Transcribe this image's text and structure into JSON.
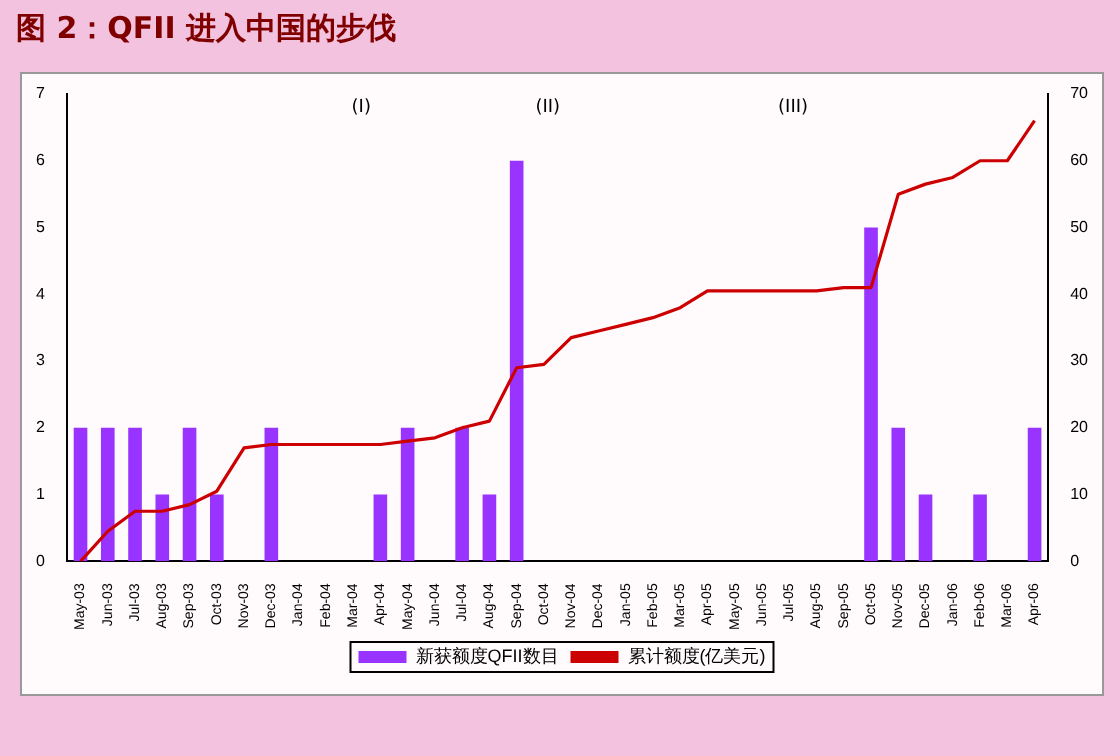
{
  "chart_data": {
    "type": "bar",
    "title": "图 2：QFII 进入中国的步伐",
    "categories": [
      "May-03",
      "Jun-03",
      "Jul-03",
      "Aug-03",
      "Sep-03",
      "Oct-03",
      "Nov-03",
      "Dec-03",
      "Jan-04",
      "Feb-04",
      "Mar-04",
      "Apr-04",
      "May-04",
      "Jun-04",
      "Jul-04",
      "Aug-04",
      "Sep-04",
      "Oct-04",
      "Nov-04",
      "Dec-04",
      "Jan-05",
      "Feb-05",
      "Mar-05",
      "Apr-05",
      "May-05",
      "Jun-05",
      "Jul-05",
      "Aug-05",
      "Sep-05",
      "Oct-05",
      "Nov-05",
      "Dec-05",
      "Jan-06",
      "Feb-06",
      "Mar-06",
      "Apr-06"
    ],
    "series": [
      {
        "name": "新获额度QFII数目",
        "color": "#9933ff",
        "values": [
          2,
          2,
          2,
          1,
          2,
          1,
          0,
          2,
          0,
          0,
          0,
          1,
          2,
          0,
          2,
          1,
          6,
          0,
          0,
          0,
          0,
          0,
          0,
          0,
          0,
          0,
          0,
          0,
          0,
          5,
          2,
          1,
          0,
          1,
          0,
          2
        ]
      },
      {
        "name": "累计额度(亿美元)",
        "type": "line",
        "axis": "y2",
        "color": "#cc0000",
        "values": [
          0,
          4.5,
          7.5,
          7.5,
          8.5,
          10.5,
          17,
          17.5,
          17.5,
          17.5,
          17.5,
          17.5,
          18,
          18.5,
          20,
          21,
          29,
          29.5,
          33.5,
          34.5,
          35.5,
          36.5,
          38,
          40.5,
          40.5,
          40.5,
          40.5,
          40.5,
          41,
          41,
          55,
          56.5,
          57.5,
          60,
          60,
          66
        ]
      }
    ],
    "ylim": [
      0,
      7
    ],
    "yticks": [
      0,
      1,
      2,
      3,
      4,
      5,
      6,
      7
    ],
    "y2lim": [
      0,
      70
    ],
    "y2ticks": [
      0,
      10,
      20,
      30,
      40,
      50,
      60,
      70
    ],
    "annotations": [
      "(I)",
      "(II)",
      "(III)"
    ],
    "grid": false,
    "legend": "bottom",
    "marker": "none",
    "line_style": "solid"
  }
}
